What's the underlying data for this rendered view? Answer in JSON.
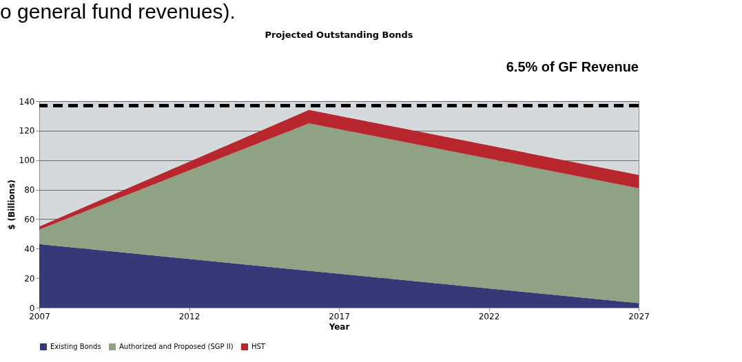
{
  "chart_data": {
    "type": "area",
    "title": "Projected Outstanding Bonds",
    "xlabel": "Year",
    "ylabel": "$ (Billions)",
    "stacked": true,
    "x": [
      2007,
      2016,
      2027
    ],
    "series": [
      {
        "name": "Existing Bonds",
        "color": "#363878",
        "values": [
          43,
          25,
          3
        ]
      },
      {
        "name": "Authorized and Proposed (SGP II)",
        "color": "#8fa283",
        "values": [
          10,
          100,
          78
        ]
      },
      {
        "name": "HST",
        "color": "#b8272d",
        "values": [
          2,
          9,
          9
        ]
      }
    ],
    "xlim": [
      2007,
      2027
    ],
    "xticks": [
      2007,
      2012,
      2017,
      2022,
      2027
    ],
    "ylim": [
      0,
      140
    ],
    "yticks": [
      0,
      20,
      40,
      60,
      80,
      100,
      120,
      140
    ],
    "grid": "y",
    "legend": "bottom",
    "ref_lines": [
      {
        "axis": "y",
        "value": 137,
        "label": "6.5% of GF Revenue",
        "color": "#000000",
        "line_style": "dashed"
      }
    ],
    "annotations": [
      "o general fund revenues)."
    ]
  }
}
